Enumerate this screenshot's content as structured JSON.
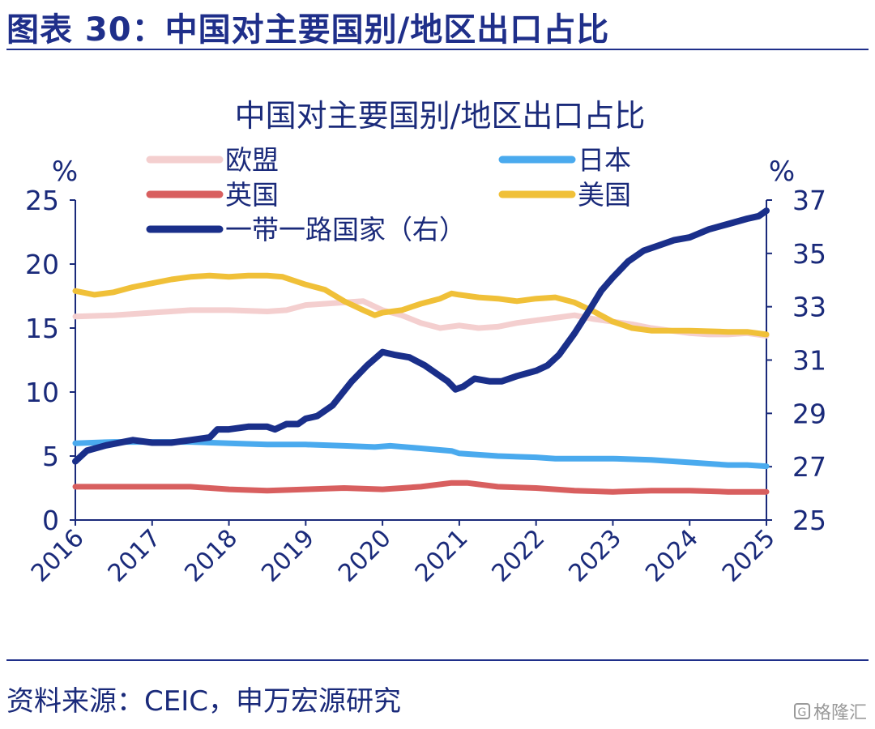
{
  "figure_title": "图表 30：中国对主要国别/地区出口占比",
  "source": "资料来源：CEIC，申万宏源研究",
  "watermark": "格隆汇",
  "chart_data": {
    "type": "line",
    "title": "中国对主要国别/地区出口占比",
    "y_left_label": "%",
    "y_right_label": "%",
    "ylim_left": [
      0,
      25
    ],
    "ylim_right": [
      25,
      37
    ],
    "yticks_left": [
      "0",
      "5",
      "10",
      "15",
      "20",
      "25"
    ],
    "yticks_right": [
      "25",
      "27",
      "29",
      "31",
      "33",
      "35",
      "37"
    ],
    "xlim": [
      2016,
      2025
    ],
    "xticks": [
      "2016",
      "2017",
      "2018",
      "2019",
      "2020",
      "2021",
      "2022",
      "2023",
      "2024",
      "2025"
    ],
    "grid": false,
    "legend_position": "top",
    "series": [
      {
        "name": "欧盟",
        "axis": "left",
        "color": "#f4cfcf",
        "x": [
          2016.0,
          2016.5,
          2017.0,
          2017.5,
          2018.0,
          2018.5,
          2018.75,
          2019.0,
          2019.5,
          2019.75,
          2020.0,
          2020.25,
          2020.5,
          2020.75,
          2021.0,
          2021.25,
          2021.5,
          2021.75,
          2022.0,
          2022.25,
          2022.5,
          2022.75,
          2023.0,
          2023.25,
          2023.5,
          2023.75,
          2024.0,
          2024.25,
          2024.5,
          2024.75,
          2025.0
        ],
        "y": [
          15.9,
          16.0,
          16.2,
          16.4,
          16.4,
          16.3,
          16.4,
          16.8,
          17.0,
          17.1,
          16.4,
          16.0,
          15.4,
          15.0,
          15.2,
          15.0,
          15.1,
          15.4,
          15.6,
          15.8,
          16.0,
          15.7,
          15.5,
          15.3,
          15.0,
          14.8,
          14.6,
          14.5,
          14.5,
          14.6,
          14.4
        ]
      },
      {
        "name": "日本",
        "axis": "left",
        "color": "#4aaaee",
        "x": [
          2016.0,
          2016.5,
          2017.0,
          2017.5,
          2018.0,
          2018.5,
          2019.0,
          2019.5,
          2019.9,
          2020.1,
          2020.5,
          2020.9,
          2021.0,
          2021.5,
          2022.0,
          2022.25,
          2022.5,
          2022.75,
          2023.0,
          2023.5,
          2024.0,
          2024.5,
          2024.75,
          2025.0
        ],
        "y": [
          6.0,
          6.1,
          6.1,
          6.1,
          6.0,
          5.9,
          5.9,
          5.8,
          5.7,
          5.8,
          5.6,
          5.4,
          5.2,
          5.0,
          4.9,
          4.8,
          4.8,
          4.8,
          4.8,
          4.7,
          4.5,
          4.3,
          4.3,
          4.2
        ]
      },
      {
        "name": "英国",
        "axis": "left",
        "color": "#d85f5f",
        "x": [
          2016.0,
          2016.5,
          2017.0,
          2017.5,
          2018.0,
          2018.5,
          2019.0,
          2019.5,
          2020.0,
          2020.5,
          2020.9,
          2021.1,
          2021.5,
          2022.0,
          2022.5,
          2023.0,
          2023.5,
          2024.0,
          2024.5,
          2025.0
        ],
        "y": [
          2.6,
          2.6,
          2.6,
          2.6,
          2.4,
          2.3,
          2.4,
          2.5,
          2.4,
          2.6,
          2.9,
          2.9,
          2.6,
          2.5,
          2.3,
          2.2,
          2.3,
          2.3,
          2.2,
          2.2
        ]
      },
      {
        "name": "美国",
        "axis": "left",
        "color": "#f0c038",
        "x": [
          2016.0,
          2016.25,
          2016.5,
          2016.75,
          2017.0,
          2017.25,
          2017.5,
          2017.75,
          2018.0,
          2018.25,
          2018.5,
          2018.7,
          2019.0,
          2019.25,
          2019.5,
          2019.75,
          2019.9,
          2020.0,
          2020.25,
          2020.5,
          2020.75,
          2020.9,
          2021.0,
          2021.25,
          2021.5,
          2021.75,
          2022.0,
          2022.25,
          2022.5,
          2022.75,
          2023.0,
          2023.25,
          2023.5,
          2023.75,
          2024.0,
          2024.5,
          2024.75,
          2025.0
        ],
        "y": [
          17.9,
          17.6,
          17.8,
          18.2,
          18.5,
          18.8,
          19.0,
          19.1,
          19.0,
          19.1,
          19.1,
          19.0,
          18.4,
          18.0,
          17.1,
          16.4,
          16.0,
          16.2,
          16.4,
          16.9,
          17.3,
          17.7,
          17.6,
          17.4,
          17.3,
          17.1,
          17.3,
          17.4,
          17.0,
          16.3,
          15.5,
          15.0,
          14.8,
          14.8,
          14.8,
          14.7,
          14.7,
          14.5
        ]
      },
      {
        "name": "一带一路国家（右）",
        "axis": "right",
        "color": "#1a2f8a",
        "x": [
          2016.0,
          2016.15,
          2016.4,
          2016.75,
          2017.0,
          2017.25,
          2017.5,
          2017.75,
          2017.85,
          2018.0,
          2018.25,
          2018.5,
          2018.6,
          2018.75,
          2018.9,
          2019.0,
          2019.15,
          2019.35,
          2019.6,
          2019.8,
          2020.0,
          2020.15,
          2020.35,
          2020.55,
          2020.7,
          2020.85,
          2020.95,
          2021.05,
          2021.2,
          2021.4,
          2021.55,
          2021.75,
          2022.0,
          2022.15,
          2022.3,
          2022.5,
          2022.7,
          2022.85,
          2023.0,
          2023.2,
          2023.4,
          2023.6,
          2023.8,
          2024.0,
          2024.25,
          2024.5,
          2024.75,
          2024.9,
          2025.0
        ],
        "y": [
          27.2,
          27.6,
          27.8,
          28.0,
          27.9,
          27.9,
          28.0,
          28.1,
          28.4,
          28.4,
          28.5,
          28.5,
          28.4,
          28.6,
          28.6,
          28.8,
          28.9,
          29.3,
          30.2,
          30.8,
          31.3,
          31.2,
          31.1,
          30.8,
          30.5,
          30.2,
          29.9,
          30.0,
          30.3,
          30.2,
          30.2,
          30.4,
          30.6,
          30.8,
          31.2,
          32.0,
          32.9,
          33.6,
          34.1,
          34.7,
          35.1,
          35.3,
          35.5,
          35.6,
          35.9,
          36.1,
          36.3,
          36.4,
          36.6
        ]
      }
    ]
  }
}
